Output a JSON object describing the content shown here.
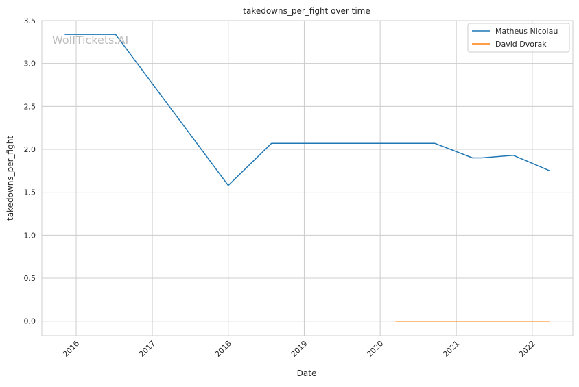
{
  "chart_data": {
    "type": "line",
    "title": "takedowns_per_fight over time",
    "xlabel": "Date",
    "ylabel": "takedowns_per_fight",
    "watermark": "WolfTickets.AI",
    "xlim": [
      "2015-07-20",
      "2022-07-15"
    ],
    "ylim": [
      -0.17,
      3.5
    ],
    "x_ticks": [
      "2016-01-01",
      "2017-01-01",
      "2018-01-01",
      "2019-01-01",
      "2020-01-01",
      "2021-01-01",
      "2022-01-01"
    ],
    "x_tick_labels": [
      "2016",
      "2017",
      "2018",
      "2019",
      "2020",
      "2021",
      "2022"
    ],
    "y_ticks": [
      0.0,
      0.5,
      1.0,
      1.5,
      2.0,
      2.5,
      3.0,
      3.5
    ],
    "y_tick_labels": [
      "0.0",
      "0.5",
      "1.0",
      "1.5",
      "2.0",
      "2.5",
      "3.0",
      "3.5"
    ],
    "grid": true,
    "legend_position": "top-right",
    "series": [
      {
        "name": "Matheus Nicolau",
        "color": "#1f77b4",
        "x": [
          "2015-11-07",
          "2016-07-08",
          "2018-01-01",
          "2018-07-28",
          "2020-09-19",
          "2021-03-20",
          "2021-05-01",
          "2021-10-02",
          "2022-03-26"
        ],
        "y": [
          3.34,
          3.34,
          1.58,
          2.07,
          2.07,
          1.9,
          1.9,
          1.93,
          1.75
        ]
      },
      {
        "name": "David Dvorak",
        "color": "#ff7f0e",
        "x": [
          "2020-03-14",
          "2022-03-26"
        ],
        "y": [
          0.0,
          0.0
        ]
      }
    ]
  }
}
